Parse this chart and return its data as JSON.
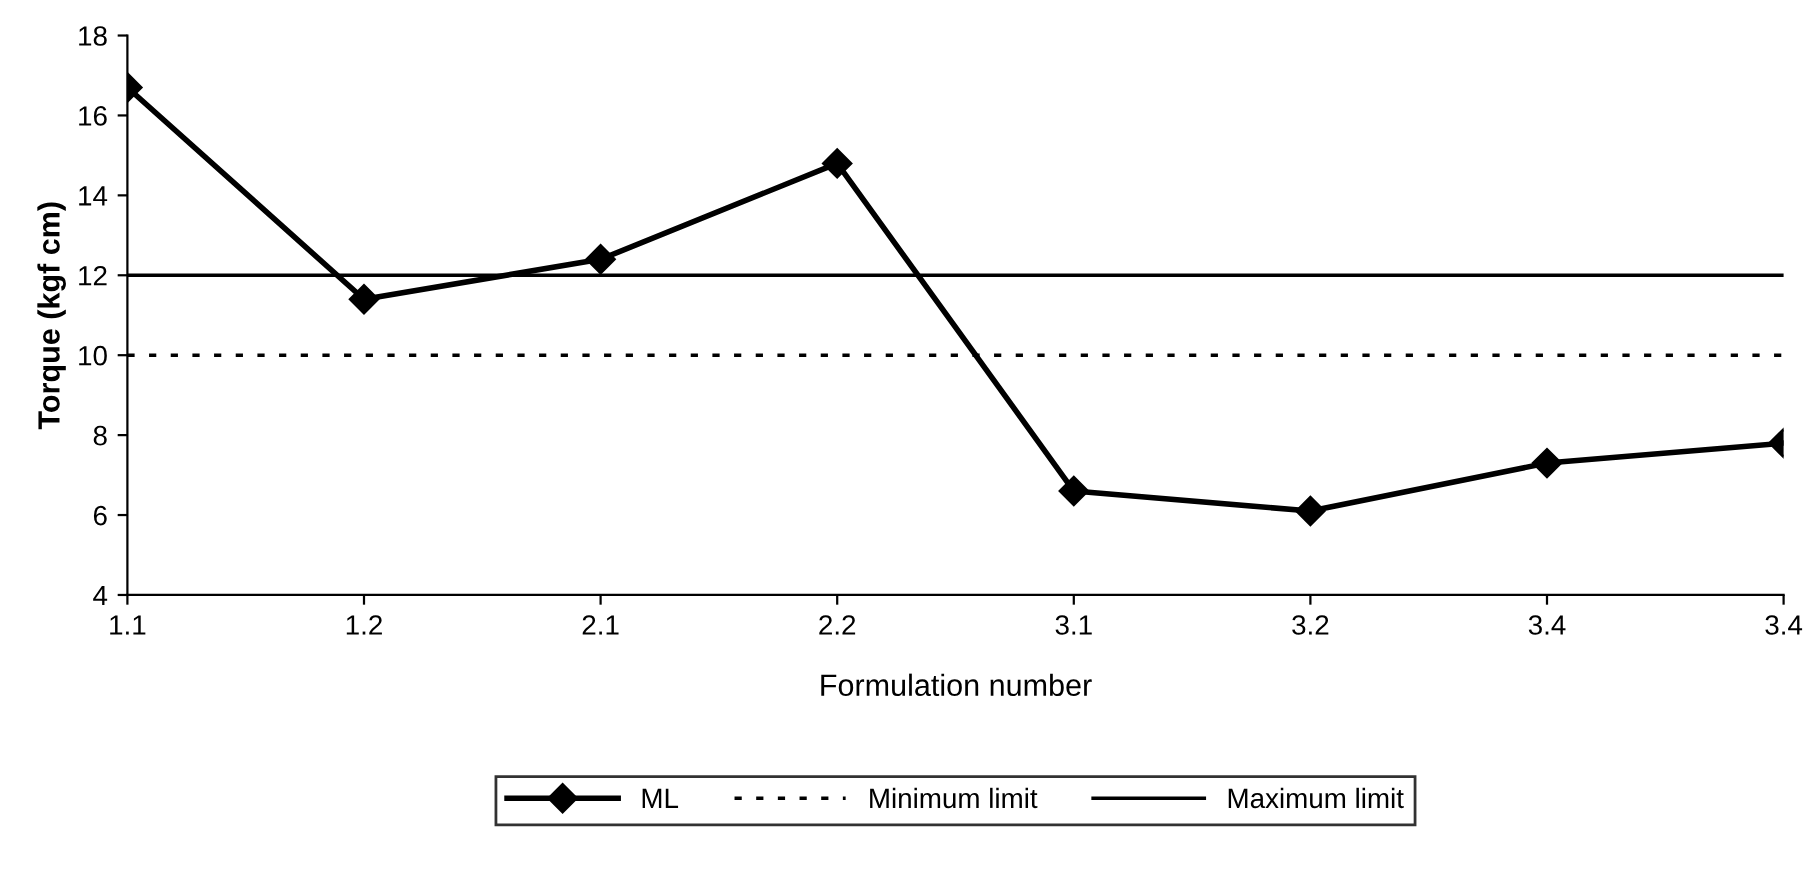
{
  "chart_data": {
    "type": "line",
    "xlabel": "Formulation number",
    "ylabel": "Torque (kgf cm)",
    "categories": [
      "1.1",
      "1.2",
      "2.1",
      "2.2",
      "3.1",
      "3.2",
      "3.4",
      "3.4"
    ],
    "series": [
      {
        "name": "ML",
        "color": "#000000",
        "values": [
          16.7,
          11.4,
          12.4,
          14.8,
          6.6,
          6.1,
          7.3,
          7.8
        ]
      }
    ],
    "ylim": [
      4,
      18
    ],
    "yticks": [
      4,
      6,
      8,
      10,
      12,
      14,
      16,
      18
    ],
    "ref_lines": [
      {
        "axis": "y",
        "value": 10,
        "label": "Minimum limit",
        "color": "#000000",
        "line_style": "dotted"
      },
      {
        "axis": "y",
        "value": 12,
        "label": "Maximum limit",
        "color": "#000000",
        "line_style": "solid"
      }
    ],
    "marker": "diamond",
    "line_style": "solid",
    "grid": false,
    "legend": "bottom"
  }
}
